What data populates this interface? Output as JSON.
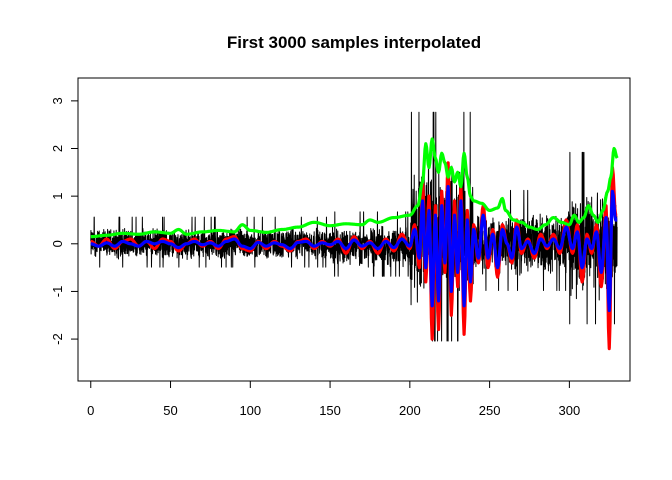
{
  "chart_data": {
    "type": "line",
    "title": "First 3000 samples interpolated",
    "xlabel": "",
    "ylabel": "",
    "xlim": [
      -8,
      338
    ],
    "ylim": [
      -2.88,
      3.48
    ],
    "xticks": [
      0,
      50,
      100,
      150,
      200,
      250,
      300
    ],
    "yticks": [
      -2,
      -1,
      0,
      1,
      2,
      3
    ],
    "grid": false,
    "legend": "none",
    "x_range": [
      0,
      330
    ],
    "series": [
      {
        "color": "#000000",
        "line_width": "thin",
        "x_step": 0.11,
        "segments": [
          {
            "from": 0,
            "to": 150,
            "center": 0.0,
            "amplitude": 0.35,
            "spike_max": 0.7
          },
          {
            "from": 150,
            "to": 200,
            "center": -0.05,
            "amplitude": 0.45,
            "spike_max": 1.2
          },
          {
            "from": 200,
            "to": 240,
            "center": 0.2,
            "amplitude": 1.6,
            "spike_max": 3.28,
            "spike_min": -2.55
          },
          {
            "from": 240,
            "to": 300,
            "center": 0.0,
            "amplitude": 0.7,
            "spike_max": 1.6
          },
          {
            "from": 300,
            "to": 330,
            "center": 0.0,
            "amplitude": 1.2,
            "spike_max": 2.2,
            "spike_min": -2.65
          }
        ]
      },
      {
        "color": "#ff0000",
        "line_width": "thick",
        "knots": [
          [
            0,
            0.05
          ],
          [
            5,
            -0.05
          ],
          [
            10,
            0.1
          ],
          [
            15,
            -0.1
          ],
          [
            20,
            0.05
          ],
          [
            25,
            0.1
          ],
          [
            30,
            -0.05
          ],
          [
            35,
            0.05
          ],
          [
            40,
            -0.1
          ],
          [
            45,
            0.1
          ],
          [
            50,
            0.05
          ],
          [
            55,
            -0.15
          ],
          [
            60,
            0.0
          ],
          [
            65,
            0.1
          ],
          [
            70,
            -0.05
          ],
          [
            75,
            0.05
          ],
          [
            80,
            -0.1
          ],
          [
            85,
            0.1
          ],
          [
            90,
            0.15
          ],
          [
            95,
            -0.1
          ],
          [
            100,
            -0.15
          ],
          [
            105,
            0.05
          ],
          [
            110,
            -0.1
          ],
          [
            115,
            0.05
          ],
          [
            120,
            -0.05
          ],
          [
            125,
            -0.15
          ],
          [
            130,
            0.05
          ],
          [
            135,
            0.1
          ],
          [
            140,
            -0.1
          ],
          [
            145,
            0.05
          ],
          [
            150,
            -0.05
          ],
          [
            155,
            0.1
          ],
          [
            160,
            -0.2
          ],
          [
            165,
            0.15
          ],
          [
            170,
            -0.1
          ],
          [
            175,
            0.05
          ],
          [
            180,
            -0.2
          ],
          [
            185,
            0.1
          ],
          [
            190,
            -0.15
          ],
          [
            195,
            0.2
          ],
          [
            200,
            -0.1
          ],
          [
            203,
            0.4
          ],
          [
            206,
            -0.5
          ],
          [
            208,
            1.3
          ],
          [
            210,
            -0.8
          ],
          [
            212,
            1.0
          ],
          [
            214,
            -2.0
          ],
          [
            216,
            0.8
          ],
          [
            218,
            -1.8
          ],
          [
            220,
            1.1
          ],
          [
            222,
            -0.6
          ],
          [
            224,
            1.7
          ],
          [
            226,
            -1.5
          ],
          [
            228,
            0.9
          ],
          [
            230,
            -0.9
          ],
          [
            232,
            1.2
          ],
          [
            234,
            -1.9
          ],
          [
            236,
            0.7
          ],
          [
            238,
            -1.2
          ],
          [
            240,
            0.4
          ],
          [
            243,
            -0.4
          ],
          [
            246,
            0.8
          ],
          [
            249,
            -0.5
          ],
          [
            252,
            0.3
          ],
          [
            255,
            -0.7
          ],
          [
            258,
            0.4
          ],
          [
            261,
            0.0
          ],
          [
            264,
            -0.4
          ],
          [
            267,
            0.5
          ],
          [
            270,
            -0.2
          ],
          [
            274,
            0.1
          ],
          [
            278,
            -0.3
          ],
          [
            282,
            0.2
          ],
          [
            286,
            -0.1
          ],
          [
            290,
            0.2
          ],
          [
            294,
            -0.2
          ],
          [
            298,
            0.5
          ],
          [
            302,
            -0.2
          ],
          [
            305,
            0.4
          ],
          [
            308,
            -0.8
          ],
          [
            311,
            0.2
          ],
          [
            314,
            -0.2
          ],
          [
            317,
            0.4
          ],
          [
            320,
            -0.9
          ],
          [
            323,
            0.8
          ],
          [
            325,
            -2.2
          ],
          [
            327,
            1.6
          ],
          [
            329,
            0.6
          ],
          [
            330,
            0.6
          ]
        ]
      },
      {
        "color": "#00ff00",
        "line_width": "thick",
        "knots": [
          [
            0,
            0.15
          ],
          [
            10,
            0.18
          ],
          [
            20,
            0.22
          ],
          [
            30,
            0.2
          ],
          [
            40,
            0.25
          ],
          [
            50,
            0.22
          ],
          [
            55,
            0.3
          ],
          [
            60,
            0.2
          ],
          [
            70,
            0.25
          ],
          [
            80,
            0.28
          ],
          [
            90,
            0.25
          ],
          [
            95,
            0.4
          ],
          [
            100,
            0.28
          ],
          [
            110,
            0.24
          ],
          [
            120,
            0.3
          ],
          [
            130,
            0.35
          ],
          [
            140,
            0.45
          ],
          [
            150,
            0.38
          ],
          [
            160,
            0.42
          ],
          [
            170,
            0.4
          ],
          [
            175,
            0.5
          ],
          [
            180,
            0.45
          ],
          [
            190,
            0.55
          ],
          [
            200,
            0.6
          ],
          [
            205,
            0.8
          ],
          [
            208,
            1.3
          ],
          [
            210,
            2.1
          ],
          [
            212,
            1.6
          ],
          [
            214,
            2.2
          ],
          [
            216,
            1.8
          ],
          [
            218,
            1.5
          ],
          [
            220,
            1.9
          ],
          [
            222,
            1.7
          ],
          [
            224,
            1.4
          ],
          [
            226,
            1.6
          ],
          [
            228,
            1.3
          ],
          [
            230,
            1.5
          ],
          [
            232,
            1.2
          ],
          [
            234,
            1.9
          ],
          [
            236,
            1.4
          ],
          [
            238,
            1.0
          ],
          [
            240,
            0.9
          ],
          [
            245,
            0.85
          ],
          [
            250,
            0.7
          ],
          [
            255,
            0.75
          ],
          [
            258,
            0.95
          ],
          [
            260,
            0.7
          ],
          [
            265,
            0.5
          ],
          [
            270,
            0.45
          ],
          [
            275,
            0.35
          ],
          [
            280,
            0.3
          ],
          [
            285,
            0.4
          ],
          [
            290,
            0.55
          ],
          [
            295,
            0.45
          ],
          [
            300,
            0.4
          ],
          [
            303,
            0.6
          ],
          [
            306,
            0.45
          ],
          [
            309,
            0.55
          ],
          [
            312,
            0.8
          ],
          [
            315,
            0.6
          ],
          [
            318,
            0.45
          ],
          [
            321,
            0.7
          ],
          [
            324,
            1.1
          ],
          [
            326,
            1.4
          ],
          [
            328,
            2.0
          ],
          [
            330,
            1.8
          ]
        ]
      },
      {
        "color": "#0000ff",
        "line_width": "thick",
        "knots": [
          [
            0,
            0.0
          ],
          [
            5,
            -0.05
          ],
          [
            10,
            0.02
          ],
          [
            15,
            -0.05
          ],
          [
            20,
            0.05
          ],
          [
            25,
            0.0
          ],
          [
            30,
            -0.05
          ],
          [
            35,
            0.05
          ],
          [
            40,
            0.0
          ],
          [
            45,
            0.05
          ],
          [
            50,
            0.0
          ],
          [
            55,
            -0.08
          ],
          [
            60,
            0.0
          ],
          [
            65,
            0.05
          ],
          [
            70,
            -0.02
          ],
          [
            75,
            0.02
          ],
          [
            80,
            -0.05
          ],
          [
            85,
            0.05
          ],
          [
            90,
            0.1
          ],
          [
            95,
            -0.05
          ],
          [
            100,
            -0.1
          ],
          [
            105,
            0.03
          ],
          [
            110,
            -0.05
          ],
          [
            115,
            0.02
          ],
          [
            120,
            -0.02
          ],
          [
            125,
            -0.1
          ],
          [
            130,
            0.03
          ],
          [
            135,
            0.05
          ],
          [
            140,
            -0.05
          ],
          [
            145,
            0.02
          ],
          [
            150,
            -0.02
          ],
          [
            155,
            0.05
          ],
          [
            160,
            -0.1
          ],
          [
            165,
            0.08
          ],
          [
            170,
            -0.05
          ],
          [
            175,
            0.02
          ],
          [
            180,
            -0.1
          ],
          [
            185,
            0.05
          ],
          [
            190,
            -0.08
          ],
          [
            195,
            0.1
          ],
          [
            200,
            -0.05
          ],
          [
            203,
            0.3
          ],
          [
            206,
            -0.3
          ],
          [
            208,
            0.9
          ],
          [
            210,
            -0.5
          ],
          [
            212,
            0.7
          ],
          [
            214,
            -1.3
          ],
          [
            216,
            0.6
          ],
          [
            218,
            -1.2
          ],
          [
            220,
            0.8
          ],
          [
            222,
            -0.4
          ],
          [
            224,
            1.2
          ],
          [
            226,
            -1.0
          ],
          [
            228,
            0.6
          ],
          [
            230,
            -0.6
          ],
          [
            232,
            0.9
          ],
          [
            234,
            -1.3
          ],
          [
            236,
            0.5
          ],
          [
            238,
            -0.8
          ],
          [
            240,
            0.3
          ],
          [
            243,
            -0.3
          ],
          [
            246,
            0.6
          ],
          [
            249,
            -0.3
          ],
          [
            252,
            0.2
          ],
          [
            255,
            -0.5
          ],
          [
            258,
            0.3
          ],
          [
            261,
            0.0
          ],
          [
            264,
            -0.3
          ],
          [
            267,
            0.35
          ],
          [
            270,
            -0.1
          ],
          [
            274,
            0.05
          ],
          [
            278,
            -0.2
          ],
          [
            282,
            0.1
          ],
          [
            286,
            -0.05
          ],
          [
            290,
            0.1
          ],
          [
            294,
            -0.1
          ],
          [
            298,
            0.35
          ],
          [
            302,
            -0.1
          ],
          [
            305,
            0.25
          ],
          [
            308,
            -0.5
          ],
          [
            311,
            0.1
          ],
          [
            314,
            -0.1
          ],
          [
            317,
            0.25
          ],
          [
            320,
            -0.6
          ],
          [
            323,
            0.55
          ],
          [
            325,
            -1.4
          ],
          [
            327,
            1.1
          ],
          [
            329,
            0.5
          ],
          [
            330,
            0.5
          ]
        ]
      }
    ]
  }
}
